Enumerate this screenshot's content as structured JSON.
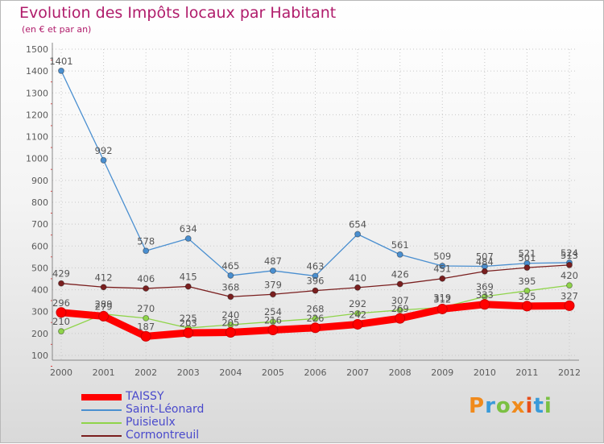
{
  "title": "Evolution des Impôts locaux par Habitant",
  "subtitle": "(en € et par an)",
  "logo": {
    "text": "Proxiti",
    "colors": [
      "#f08a1c",
      "#3a9ad9",
      "#7bc043",
      "#f08a1c",
      "#e84e1b",
      "#3a9ad9",
      "#7bc043"
    ]
  },
  "colors": {
    "title": "#b01c6b",
    "axis_tick_label": "#5a5a5a",
    "data_label": "#555555",
    "grid": "#c8c8c8"
  },
  "chart_data": {
    "type": "line",
    "title": "Evolution des Impôts locaux par Habitant",
    "subtitle": "(en € et par an)",
    "xlabel": "",
    "ylabel": "",
    "ylim": [
      100,
      1500
    ],
    "y_ticks": [
      "100",
      "200",
      "300",
      "400",
      "500",
      "600",
      "700",
      "800",
      "900",
      "1000",
      "1100",
      "1200",
      "1300",
      "1400",
      "1500"
    ],
    "x": [
      "2000",
      "2001",
      "2002",
      "2003",
      "2004",
      "2005",
      "2006",
      "2007",
      "2008",
      "2009",
      "2010",
      "2011",
      "2012"
    ],
    "grid": true,
    "legend_position": "bottom-left",
    "series": [
      {
        "name": "TAISSY",
        "color": "#ff0000",
        "labels": [
          "296",
          "279",
          "187",
          "203",
          "205",
          "216",
          "226",
          "242",
          "269",
          "312",
          "333",
          "325",
          "327"
        ],
        "values": [
          296,
          279,
          187,
          203,
          205,
          216,
          226,
          242,
          269,
          312,
          333,
          325,
          327
        ]
      },
      {
        "name": "Saint-Léonard",
        "color": "#4a8fd0",
        "labels": [
          "1401",
          "992",
          "578",
          "634",
          "465",
          "487",
          "463",
          "654",
          "561",
          "509",
          "507",
          "521",
          "524"
        ],
        "values": [
          1401,
          992,
          578,
          634,
          465,
          487,
          463,
          654,
          561,
          509,
          507,
          521,
          524
        ]
      },
      {
        "name": "Puisieulx",
        "color": "#8fd44a",
        "labels": [
          "210",
          "289",
          "270",
          "225",
          "240",
          "254",
          "268",
          "292",
          "307",
          "319",
          "369",
          "395",
          "420"
        ],
        "values": [
          210,
          289,
          270,
          225,
          240,
          254,
          268,
          292,
          307,
          319,
          369,
          395,
          420
        ]
      },
      {
        "name": "Cormontreuil",
        "color": "#7a1f1f",
        "labels": [
          "429",
          "412",
          "406",
          "415",
          "368",
          "379",
          "396",
          "410",
          "426",
          "451",
          "484",
          "501",
          "513"
        ],
        "values": [
          429,
          412,
          406,
          415,
          368,
          379,
          396,
          410,
          426,
          451,
          484,
          501,
          513
        ]
      }
    ]
  }
}
